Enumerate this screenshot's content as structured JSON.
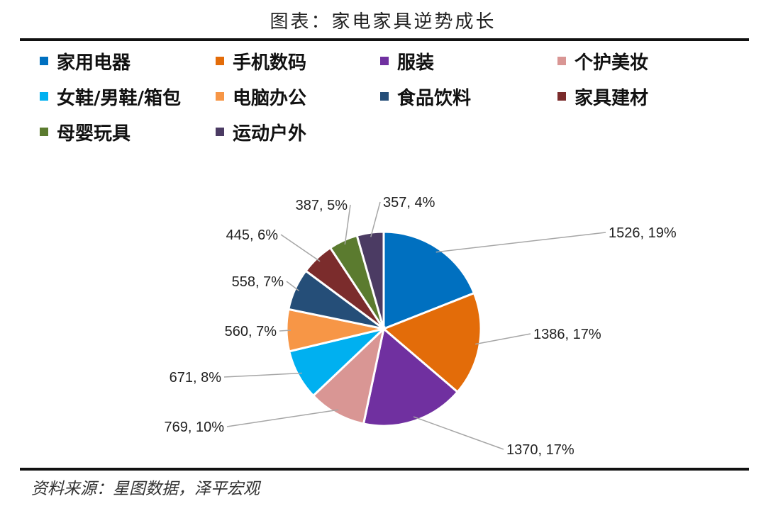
{
  "title": "图表：家电家具逆势成长",
  "source": "资料来源：星图数据，泽平宏观",
  "chart_data": {
    "type": "pie",
    "legend_position": "top",
    "slices": [
      {
        "name": "家用电器",
        "value": 1526,
        "percent": "19%",
        "color": "#0070C0"
      },
      {
        "name": "手机数码",
        "value": 1386,
        "percent": "17%",
        "color": "#E36C09"
      },
      {
        "name": "服装",
        "value": 1370,
        "percent": "17%",
        "color": "#7030A0"
      },
      {
        "name": "个护美妆",
        "value": 769,
        "percent": "10%",
        "color": "#D99694"
      },
      {
        "name": "女鞋/男鞋/箱包",
        "value": 671,
        "percent": "8%",
        "color": "#00B0F0"
      },
      {
        "name": "电脑办公",
        "value": 560,
        "percent": "7%",
        "color": "#F79646"
      },
      {
        "name": "食品饮料",
        "value": 558,
        "percent": "7%",
        "color": "#254E78"
      },
      {
        "name": "家具建材",
        "value": 445,
        "percent": "6%",
        "color": "#7B2C2C"
      },
      {
        "name": "母婴玩具",
        "value": 387,
        "percent": "5%",
        "color": "#5B7B2F"
      },
      {
        "name": "运动户外",
        "value": 357,
        "percent": "4%",
        "color": "#4B3B63"
      }
    ]
  }
}
